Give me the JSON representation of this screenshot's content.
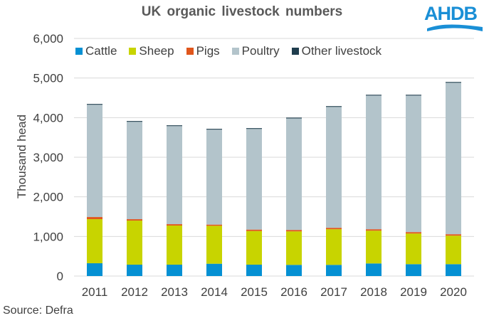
{
  "chart_data": {
    "type": "bar",
    "stacked": true,
    "title": "UK organic livestock numbers",
    "xlabel": "",
    "ylabel": "Thousand head",
    "ylim": [
      0,
      6000
    ],
    "yticks": [
      "0",
      "1,000",
      "2,000",
      "3,000",
      "4,000",
      "5,000",
      "6,000"
    ],
    "ytick_values": [
      0,
      1000,
      2000,
      3000,
      4000,
      5000,
      6000
    ],
    "grid": true,
    "legend_position": "top",
    "categories": [
      "2011",
      "2012",
      "2013",
      "2014",
      "2015",
      "2016",
      "2017",
      "2018",
      "2019",
      "2020"
    ],
    "series": [
      {
        "name": "Cattle",
        "color": "#0590d3",
        "values": [
          323,
          287,
          287,
          311,
          287,
          282,
          282,
          318,
          300,
          300
        ]
      },
      {
        "name": "Sheep",
        "color": "#c8d400",
        "values": [
          1113,
          1113,
          988,
          958,
          850,
          846,
          900,
          828,
          774,
          720
        ]
      },
      {
        "name": "Pigs",
        "color": "#e0561c",
        "values": [
          54,
          36,
          35,
          30,
          36,
          36,
          36,
          36,
          36,
          36
        ]
      },
      {
        "name": "Poultry",
        "color": "#b3c4cb",
        "values": [
          2835,
          2458,
          2476,
          2398,
          2541,
          2816,
          3052,
          3375,
          3447,
          3824
        ]
      },
      {
        "name": "Other livestock",
        "color": "#1f3d4d",
        "values": [
          20,
          20,
          20,
          20,
          20,
          20,
          20,
          20,
          20,
          20
        ]
      }
    ]
  },
  "header": {
    "title": "UK organic  livestock  numbers",
    "logo_text": "AHDB"
  },
  "footer": {
    "source": "Source: Defra"
  }
}
